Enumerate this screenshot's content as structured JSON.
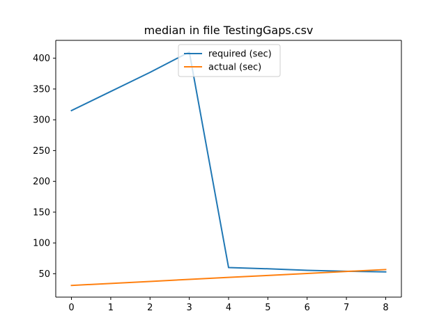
{
  "chart_data": {
    "type": "line",
    "title": "median in file TestingGaps.csv",
    "xlabel": "",
    "ylabel": "",
    "x": [
      0,
      1,
      2,
      3,
      4,
      5,
      6,
      7,
      8
    ],
    "series": [
      {
        "name": "required (sec)",
        "color": "#1f77b4",
        "values": [
          315,
          346,
          377,
          410,
          60,
          58,
          55.5,
          54,
          53
        ]
      },
      {
        "name": "actual (sec)",
        "color": "#ff7f0e",
        "values": [
          31,
          34.2,
          37.5,
          40.8,
          44,
          47.2,
          50.4,
          53.7,
          56.8
        ]
      }
    ],
    "xlim": [
      -0.4,
      8.4
    ],
    "ylim": [
      12,
      429
    ],
    "xticks": [
      0,
      1,
      2,
      3,
      4,
      5,
      6,
      7,
      8
    ],
    "yticks": [
      50,
      100,
      150,
      200,
      250,
      300,
      350,
      400
    ],
    "grid": false,
    "legend_position": "upper center"
  }
}
